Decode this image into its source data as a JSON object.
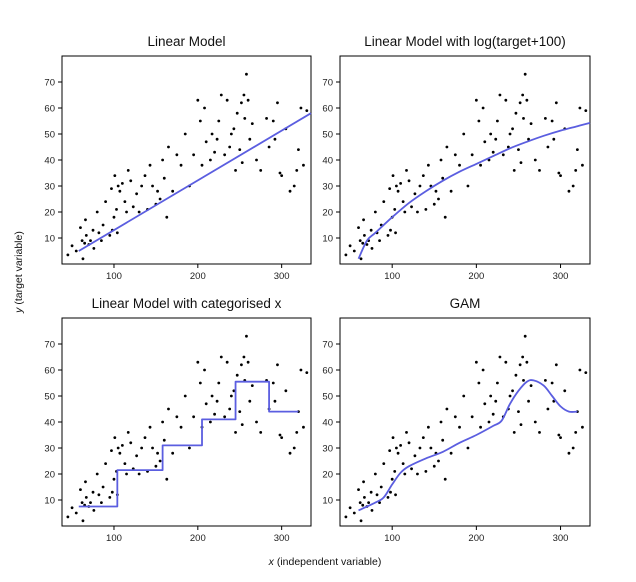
{
  "figure": {
    "xlabel_var": "x",
    "xlabel_rest": " (independent variable)",
    "ylabel_var": "y",
    "ylabel_rest": " (target variable)"
  },
  "chart_data": [
    {
      "id": "linear",
      "type": "scatter",
      "title": "Linear Model",
      "xlim": [
        38,
        335
      ],
      "ylim": [
        0,
        80
      ],
      "xticks": [
        100,
        200,
        300
      ],
      "yticks": [
        10,
        20,
        30,
        40,
        50,
        60,
        70
      ],
      "fit": {
        "kind": "linear",
        "x": [
          58,
          335
        ],
        "y": [
          5,
          58
        ]
      }
    },
    {
      "id": "loglinear",
      "type": "scatter",
      "title": "Linear Model with log(target+100)",
      "xlim": [
        38,
        335
      ],
      "ylim": [
        0,
        80
      ],
      "xticks": [
        100,
        200,
        300
      ],
      "yticks": [
        10,
        20,
        30,
        40,
        50,
        60,
        70
      ],
      "fit": {
        "kind": "curve",
        "x": [
          60,
          70,
          80,
          100,
          120,
          140,
          160,
          180,
          200,
          220,
          240,
          260,
          280,
          300,
          320,
          335
        ],
        "y": [
          2,
          9,
          12,
          18,
          23.5,
          28,
          32,
          35.5,
          38.5,
          41.5,
          44.5,
          47,
          49.3,
          51.3,
          53,
          54.3
        ]
      }
    },
    {
      "id": "categorised",
      "type": "scatter",
      "title": "Linear Model with categorised x",
      "xlim": [
        38,
        335
      ],
      "ylim": [
        0,
        80
      ],
      "xticks": [
        100,
        200,
        300
      ],
      "yticks": [
        10,
        20,
        30,
        40,
        50,
        60,
        70
      ],
      "fit": {
        "kind": "step",
        "x": [
          58,
          104,
          104,
          158,
          158,
          205,
          205,
          245,
          245,
          285,
          285,
          320
        ],
        "y": [
          7.5,
          7.5,
          21.5,
          21.5,
          31,
          31,
          41,
          41,
          55.5,
          55.5,
          44,
          44
        ]
      }
    },
    {
      "id": "gam",
      "type": "scatter",
      "title": "GAM",
      "xlim": [
        38,
        335
      ],
      "ylim": [
        0,
        80
      ],
      "xticks": [
        100,
        200,
        300
      ],
      "yticks": [
        10,
        20,
        30,
        40,
        50,
        60,
        70
      ],
      "fit": {
        "kind": "curve",
        "x": [
          60,
          80,
          90,
          100,
          110,
          120,
          140,
          160,
          180,
          200,
          220,
          230,
          240,
          250,
          260,
          268,
          280,
          290,
          300,
          310,
          320
        ],
        "y": [
          6,
          9,
          11,
          16,
          20.5,
          23,
          26,
          28.5,
          32,
          35,
          38.5,
          40.5,
          47,
          52,
          55.5,
          56,
          54,
          50,
          46,
          44,
          44
        ]
      }
    }
  ],
  "points": {
    "x": [
      45,
      50,
      55,
      60,
      62,
      63,
      65,
      66,
      67,
      70,
      72,
      75,
      76,
      80,
      82,
      85,
      87,
      90,
      95,
      97,
      98,
      100,
      101,
      103,
      104,
      105,
      107,
      110,
      113,
      115,
      117,
      120,
      123,
      127,
      130,
      133,
      137,
      140,
      143,
      146,
      150,
      152,
      155,
      158,
      160,
      163,
      165,
      170,
      175,
      180,
      185,
      190,
      195,
      200,
      203,
      205,
      208,
      210,
      215,
      217,
      220,
      223,
      225,
      228,
      232,
      235,
      238,
      240,
      243,
      245,
      247,
      250,
      252,
      253,
      255,
      256,
      258,
      260,
      262,
      265,
      270,
      275,
      282,
      285,
      290,
      292,
      295,
      298,
      300,
      305,
      310,
      315,
      318,
      320,
      323,
      326,
      330
    ],
    "y": [
      3.5,
      7,
      5,
      14,
      9,
      2,
      8,
      17,
      11,
      7.5,
      9,
      13,
      6,
      20,
      12,
      9,
      15,
      24,
      11,
      29,
      13,
      18,
      34,
      21,
      12,
      30,
      28,
      31,
      24,
      20,
      36,
      32,
      22,
      27,
      20,
      30,
      34,
      21,
      38,
      30,
      23,
      28,
      25,
      40,
      33,
      18,
      45,
      28,
      42,
      38,
      50,
      30,
      42,
      63,
      55,
      38,
      60,
      47,
      40,
      50,
      43,
      48,
      55,
      65,
      42,
      63,
      45,
      50,
      52,
      36,
      58,
      44,
      62,
      39,
      65,
      56,
      73,
      63,
      48,
      54,
      40,
      36,
      56,
      45,
      55,
      48,
      62,
      35,
      34,
      52,
      28,
      30,
      36,
      44,
      60,
      38,
      59
    ]
  }
}
